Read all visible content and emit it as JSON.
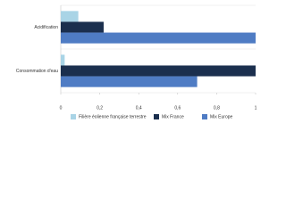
{
  "chart_data": {
    "type": "hbar",
    "categories": [
      "Acidification",
      "Consommation d'eau"
    ],
    "series": [
      {
        "name": "Filière éolienne française terrestre",
        "color": "#a9d4e6",
        "values": [
          0.09,
          0.02
        ]
      },
      {
        "name": "Mix France",
        "color": "#1b2f4e",
        "values": [
          0.22,
          1
        ]
      },
      {
        "name": "Mix Europe",
        "color": "#4f7cc4",
        "values": [
          1,
          0.7
        ]
      }
    ],
    "xlim": [
      0,
      1
    ],
    "xticks": [
      0,
      {
        "value": 0.2,
        "label": "0,2"
      },
      {
        "value": 0.4,
        "label": "0,4"
      },
      {
        "value": 0.6,
        "label": "0,6"
      },
      {
        "value": 0.8,
        "label": "0,8"
      },
      1
    ],
    "legend": "bottom"
  }
}
